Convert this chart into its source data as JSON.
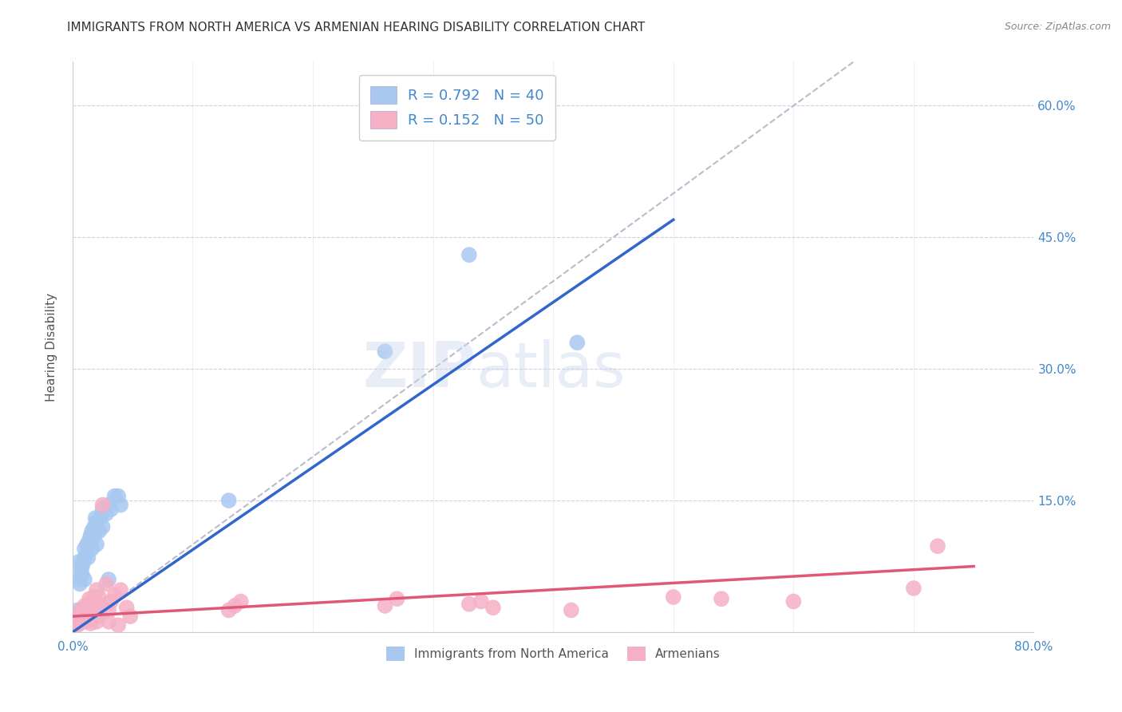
{
  "title": "IMMIGRANTS FROM NORTH AMERICA VS ARMENIAN HEARING DISABILITY CORRELATION CHART",
  "source": "Source: ZipAtlas.com",
  "xlabel": "",
  "ylabel": "Hearing Disability",
  "legend_labels": [
    "Immigrants from North America",
    "Armenians"
  ],
  "legend_r_n": [
    {
      "R": "0.792",
      "N": "40"
    },
    {
      "R": "0.152",
      "N": "50"
    }
  ],
  "xlim": [
    0,
    0.8
  ],
  "ylim": [
    0,
    0.65
  ],
  "xticks": [
    0.0,
    0.1,
    0.2,
    0.3,
    0.4,
    0.5,
    0.6,
    0.7,
    0.8
  ],
  "xtick_labels": [
    "0.0%",
    "",
    "",
    "",
    "",
    "",
    "",
    "",
    "80.0%"
  ],
  "ytick_positions": [
    0.0,
    0.15,
    0.3,
    0.45,
    0.6
  ],
  "ytick_labels": [
    "",
    "15.0%",
    "30.0%",
    "45.0%",
    "60.0%"
  ],
  "color_blue": "#a8c8f0",
  "color_pink": "#f5b0c5",
  "line_color_blue": "#3366cc",
  "line_color_pink": "#e05878",
  "diagonal_color": "#bbbbcc",
  "blue_scatter": [
    [
      0.003,
      0.02
    ],
    [
      0.004,
      0.025
    ],
    [
      0.005,
      0.06
    ],
    [
      0.005,
      0.08
    ],
    [
      0.006,
      0.055
    ],
    [
      0.007,
      0.07
    ],
    [
      0.008,
      0.075
    ],
    [
      0.008,
      0.065
    ],
    [
      0.009,
      0.08
    ],
    [
      0.01,
      0.085
    ],
    [
      0.01,
      0.095
    ],
    [
      0.01,
      0.06
    ],
    [
      0.012,
      0.09
    ],
    [
      0.012,
      0.1
    ],
    [
      0.013,
      0.085
    ],
    [
      0.014,
      0.105
    ],
    [
      0.015,
      0.1
    ],
    [
      0.015,
      0.11
    ],
    [
      0.016,
      0.095
    ],
    [
      0.016,
      0.115
    ],
    [
      0.018,
      0.11
    ],
    [
      0.018,
      0.12
    ],
    [
      0.019,
      0.13
    ],
    [
      0.02,
      0.1
    ],
    [
      0.02,
      0.125
    ],
    [
      0.022,
      0.115
    ],
    [
      0.023,
      0.13
    ],
    [
      0.025,
      0.12
    ],
    [
      0.025,
      0.14
    ],
    [
      0.028,
      0.135
    ],
    [
      0.03,
      0.145
    ],
    [
      0.03,
      0.06
    ],
    [
      0.032,
      0.14
    ],
    [
      0.035,
      0.155
    ],
    [
      0.038,
      0.155
    ],
    [
      0.04,
      0.145
    ],
    [
      0.13,
      0.15
    ],
    [
      0.26,
      0.32
    ],
    [
      0.33,
      0.43
    ],
    [
      0.42,
      0.33
    ]
  ],
  "pink_scatter": [
    [
      0.002,
      0.008
    ],
    [
      0.003,
      0.012
    ],
    [
      0.004,
      0.008
    ],
    [
      0.005,
      0.015
    ],
    [
      0.005,
      0.02
    ],
    [
      0.006,
      0.01
    ],
    [
      0.007,
      0.018
    ],
    [
      0.007,
      0.025
    ],
    [
      0.008,
      0.015
    ],
    [
      0.009,
      0.02
    ],
    [
      0.01,
      0.022
    ],
    [
      0.01,
      0.03
    ],
    [
      0.011,
      0.012
    ],
    [
      0.012,
      0.028
    ],
    [
      0.013,
      0.015
    ],
    [
      0.014,
      0.038
    ],
    [
      0.015,
      0.025
    ],
    [
      0.015,
      0.01
    ],
    [
      0.016,
      0.035
    ],
    [
      0.018,
      0.04
    ],
    [
      0.019,
      0.028
    ],
    [
      0.02,
      0.048
    ],
    [
      0.02,
      0.012
    ],
    [
      0.022,
      0.018
    ],
    [
      0.022,
      0.04
    ],
    [
      0.024,
      0.03
    ],
    [
      0.025,
      0.145
    ],
    [
      0.028,
      0.055
    ],
    [
      0.03,
      0.025
    ],
    [
      0.03,
      0.012
    ],
    [
      0.032,
      0.035
    ],
    [
      0.035,
      0.042
    ],
    [
      0.038,
      0.008
    ],
    [
      0.04,
      0.048
    ],
    [
      0.045,
      0.028
    ],
    [
      0.048,
      0.018
    ],
    [
      0.13,
      0.025
    ],
    [
      0.135,
      0.03
    ],
    [
      0.14,
      0.035
    ],
    [
      0.26,
      0.03
    ],
    [
      0.27,
      0.038
    ],
    [
      0.33,
      0.032
    ],
    [
      0.34,
      0.035
    ],
    [
      0.35,
      0.028
    ],
    [
      0.415,
      0.025
    ],
    [
      0.5,
      0.04
    ],
    [
      0.54,
      0.038
    ],
    [
      0.6,
      0.035
    ],
    [
      0.7,
      0.05
    ],
    [
      0.72,
      0.098
    ]
  ],
  "blue_line": [
    [
      0.0,
      0.0
    ],
    [
      0.5,
      0.47
    ]
  ],
  "pink_line": [
    [
      0.0,
      0.018
    ],
    [
      0.75,
      0.075
    ]
  ],
  "diag_line": [
    [
      0.0,
      0.0
    ],
    [
      0.65,
      0.65
    ]
  ],
  "title_fontsize": 11,
  "axis_label_fontsize": 11,
  "tick_fontsize": 11,
  "legend_fontsize": 13,
  "background_color": "#ffffff",
  "grid_color": "#d0d0e0"
}
